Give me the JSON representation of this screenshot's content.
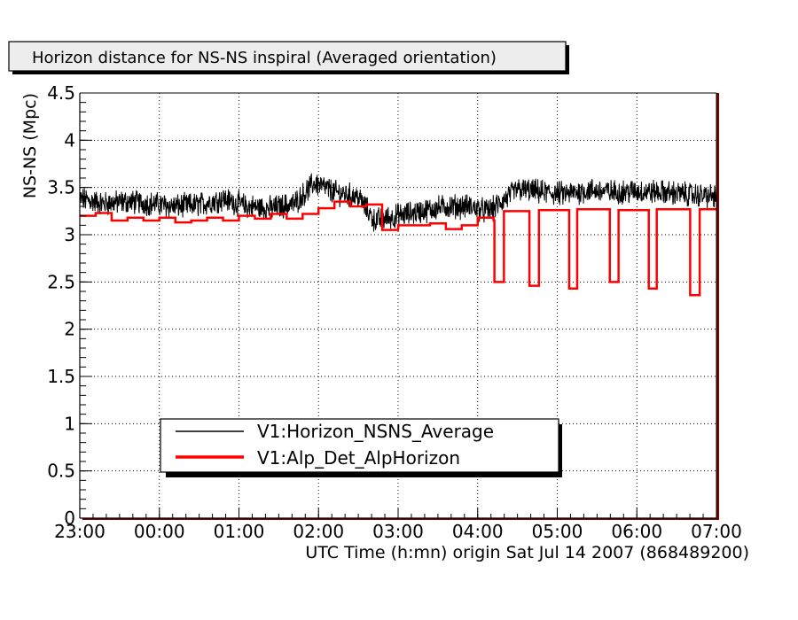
{
  "chart_data": {
    "type": "line",
    "title": "Horizon distance for NS-NS inspiral (Averaged orientation)",
    "xlabel": "UTC Time (h:mn) origin Sat Jul 14 2007 (868489200)",
    "ylabel": "NS-NS (Mpc)",
    "x_tick_labels": [
      "23:00",
      "00:00",
      "01:00",
      "02:00",
      "03:00",
      "04:00",
      "05:00",
      "06:00",
      "07:00"
    ],
    "y_tick_labels": [
      "0",
      "0.5",
      "1",
      "1.5",
      "2",
      "2.5",
      "3",
      "3.5",
      "4",
      "4.5"
    ],
    "xlim_hours": [
      -1,
      7
    ],
    "ylim": [
      0,
      4.5
    ],
    "grid": true,
    "legend_position": "bottom-center",
    "series": [
      {
        "name": "V1:Horizon_NSNS_Average",
        "color": "#000000",
        "style": "noisy",
        "x_hours": [
          -1.0,
          -0.7,
          -0.4,
          -0.1,
          0.2,
          0.5,
          0.8,
          1.1,
          1.4,
          1.7,
          1.95,
          2.2,
          2.5,
          2.7,
          3.0,
          3.3,
          3.6,
          3.9,
          4.1,
          4.2,
          4.5,
          4.8,
          5.1,
          5.4,
          5.7,
          6.0,
          6.3,
          6.6,
          7.0
        ],
        "y": [
          3.38,
          3.33,
          3.35,
          3.33,
          3.3,
          3.32,
          3.38,
          3.3,
          3.28,
          3.33,
          3.55,
          3.45,
          3.4,
          3.15,
          3.2,
          3.25,
          3.3,
          3.3,
          3.25,
          3.28,
          3.48,
          3.45,
          3.43,
          3.47,
          3.45,
          3.46,
          3.45,
          3.43,
          3.4
        ]
      },
      {
        "name": "V1:Alp_Det_AlpHorizon",
        "color": "#ff0000",
        "style": "step",
        "x_hours": [
          -1.0,
          -0.8,
          -0.6,
          -0.4,
          -0.2,
          0.0,
          0.2,
          0.4,
          0.6,
          0.8,
          1.0,
          1.2,
          1.4,
          1.6,
          1.8,
          2.0,
          2.2,
          2.4,
          2.6,
          2.8,
          3.0,
          3.2,
          3.4,
          3.6,
          3.8,
          4.0,
          4.2,
          4.21,
          4.32,
          4.33,
          4.6,
          4.65,
          4.76,
          4.77,
          5.1,
          5.15,
          5.24,
          5.25,
          5.6,
          5.66,
          5.76,
          5.77,
          6.1,
          6.15,
          6.24,
          6.25,
          6.6,
          6.67,
          6.78,
          6.79,
          7.0
        ],
        "y": [
          3.2,
          3.23,
          3.15,
          3.18,
          3.15,
          3.18,
          3.13,
          3.15,
          3.18,
          3.15,
          3.2,
          3.17,
          3.22,
          3.17,
          3.22,
          3.28,
          3.35,
          3.3,
          3.32,
          3.05,
          3.1,
          3.1,
          3.12,
          3.06,
          3.1,
          3.18,
          3.15,
          2.5,
          2.5,
          3.25,
          3.25,
          2.46,
          2.46,
          3.26,
          3.26,
          2.43,
          2.43,
          3.27,
          3.27,
          2.5,
          2.5,
          3.26,
          3.26,
          2.43,
          2.43,
          3.27,
          3.27,
          2.36,
          2.36,
          3.27,
          3.27
        ]
      }
    ]
  }
}
